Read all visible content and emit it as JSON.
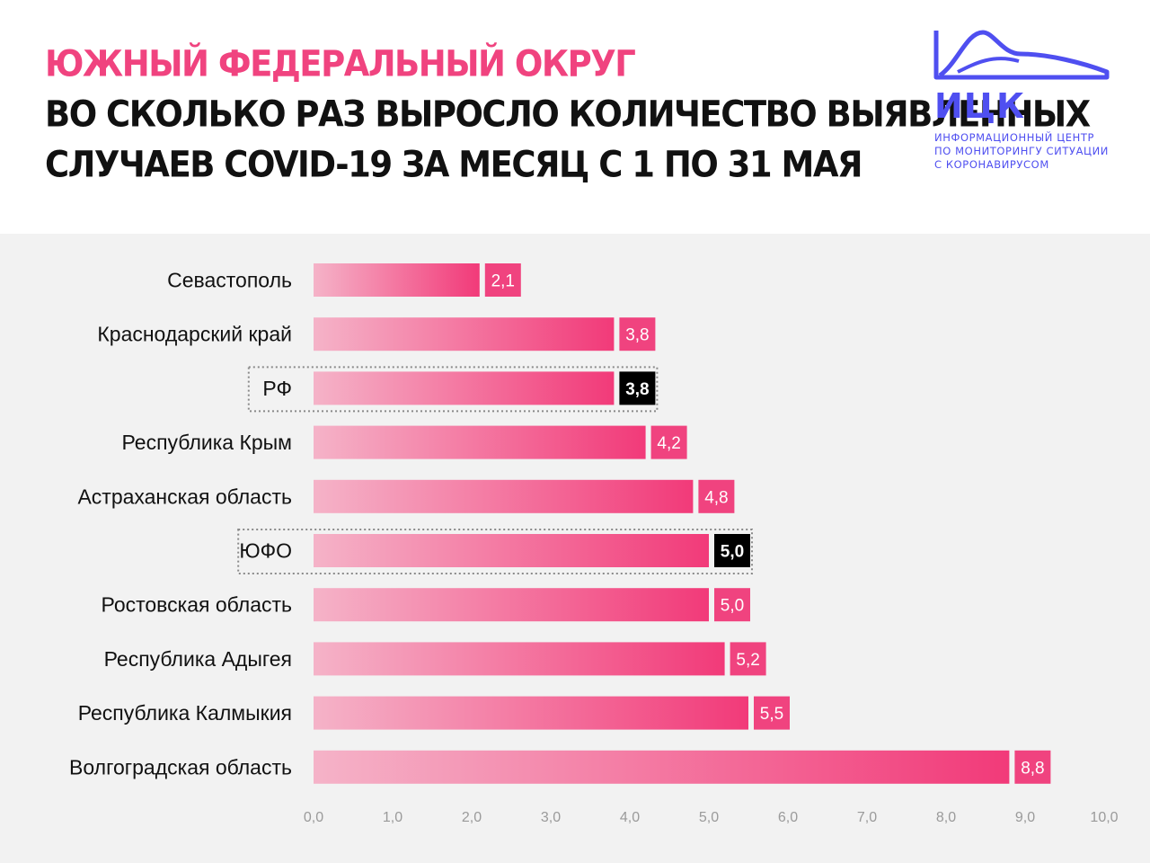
{
  "header": {
    "region_title": "ЮЖНЫЙ ФЕДЕРАЛЬНЫЙ ОКРУГ",
    "title_line1": "ВО СКОЛЬКО РАЗ ВЫРОСЛО КОЛИЧЕСТВО ВЫЯВЛЕННЫХ",
    "title_line2": "СЛУЧАЕВ COVID-19 ЗА МЕСЯЦ С 1 ПО 31 МАЯ"
  },
  "logo": {
    "abbr": "ИЦК",
    "line1": "ИНФОРМАЦИОННЫЙ ЦЕНТР",
    "line2": "ПО МОНИТОРИНГУ СИТУАЦИИ",
    "line3": "С КОРОНАВИРУСОМ",
    "color": "#4f4ff0"
  },
  "chart_data": {
    "type": "bar",
    "orientation": "horizontal",
    "categories": [
      "Севастополь",
      "Краснодарский край",
      "РФ",
      "Республика Крым",
      "Астраханская область",
      "ЮФО",
      "Ростовская область",
      "Республика Адыгея",
      "Республика Калмыкия",
      "Волгоградская область"
    ],
    "values": [
      2.1,
      3.8,
      3.8,
      4.2,
      4.8,
      5.0,
      5.0,
      5.2,
      5.5,
      8.8
    ],
    "value_labels": [
      "2,1",
      "3,8",
      "3,8",
      "4,2",
      "4,8",
      "5,0",
      "5,0",
      "5,2",
      "5,5",
      "8,8"
    ],
    "highlighted": [
      false,
      false,
      true,
      false,
      false,
      true,
      false,
      false,
      false,
      false
    ],
    "xlim": [
      0,
      10
    ],
    "x_ticks": [
      "0,0",
      "1,0",
      "2,0",
      "3,0",
      "4,0",
      "5,0",
      "6,0",
      "7,0",
      "8,0",
      "9,0",
      "10,0"
    ],
    "grid": false,
    "colors": {
      "bar_start": "#f5b3c8",
      "bar_end": "#f23a79",
      "label_bg": "#f0437f",
      "highlight_label_bg": "#000000",
      "highlight_box_border": "#8a8a8a",
      "background": "#f2f2f2"
    }
  }
}
